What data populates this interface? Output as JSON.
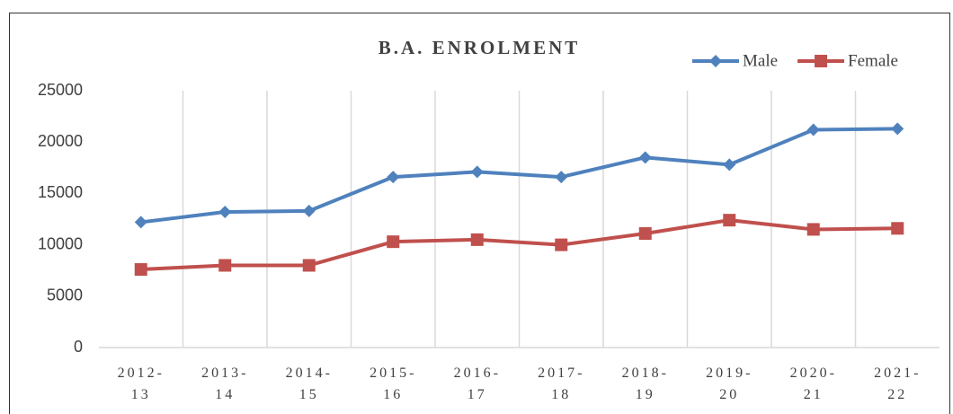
{
  "chart_data": {
    "type": "line",
    "title": "B.A. ENROLMENT",
    "categories": [
      "2012-13",
      "2013-14",
      "2014-15",
      "2015-16",
      "2016-17",
      "2017-18",
      "2018-19",
      "2019-20",
      "2020-21",
      "2021-22"
    ],
    "series": [
      {
        "name": "Male",
        "color": "#4f81bd",
        "marker": "diamond",
        "values": [
          12200,
          13200,
          13300,
          16600,
          17100,
          16600,
          18500,
          17800,
          21200,
          21300
        ]
      },
      {
        "name": "Female",
        "color": "#c0504d",
        "marker": "square",
        "values": [
          7600,
          8000,
          8000,
          10300,
          10500,
          10000,
          11100,
          12400,
          11500,
          11600
        ]
      }
    ],
    "ylim": [
      0,
      25000
    ],
    "yticks": [
      0,
      5000,
      10000,
      15000,
      20000,
      25000
    ],
    "grid": "vertical",
    "legend": "top-right"
  }
}
